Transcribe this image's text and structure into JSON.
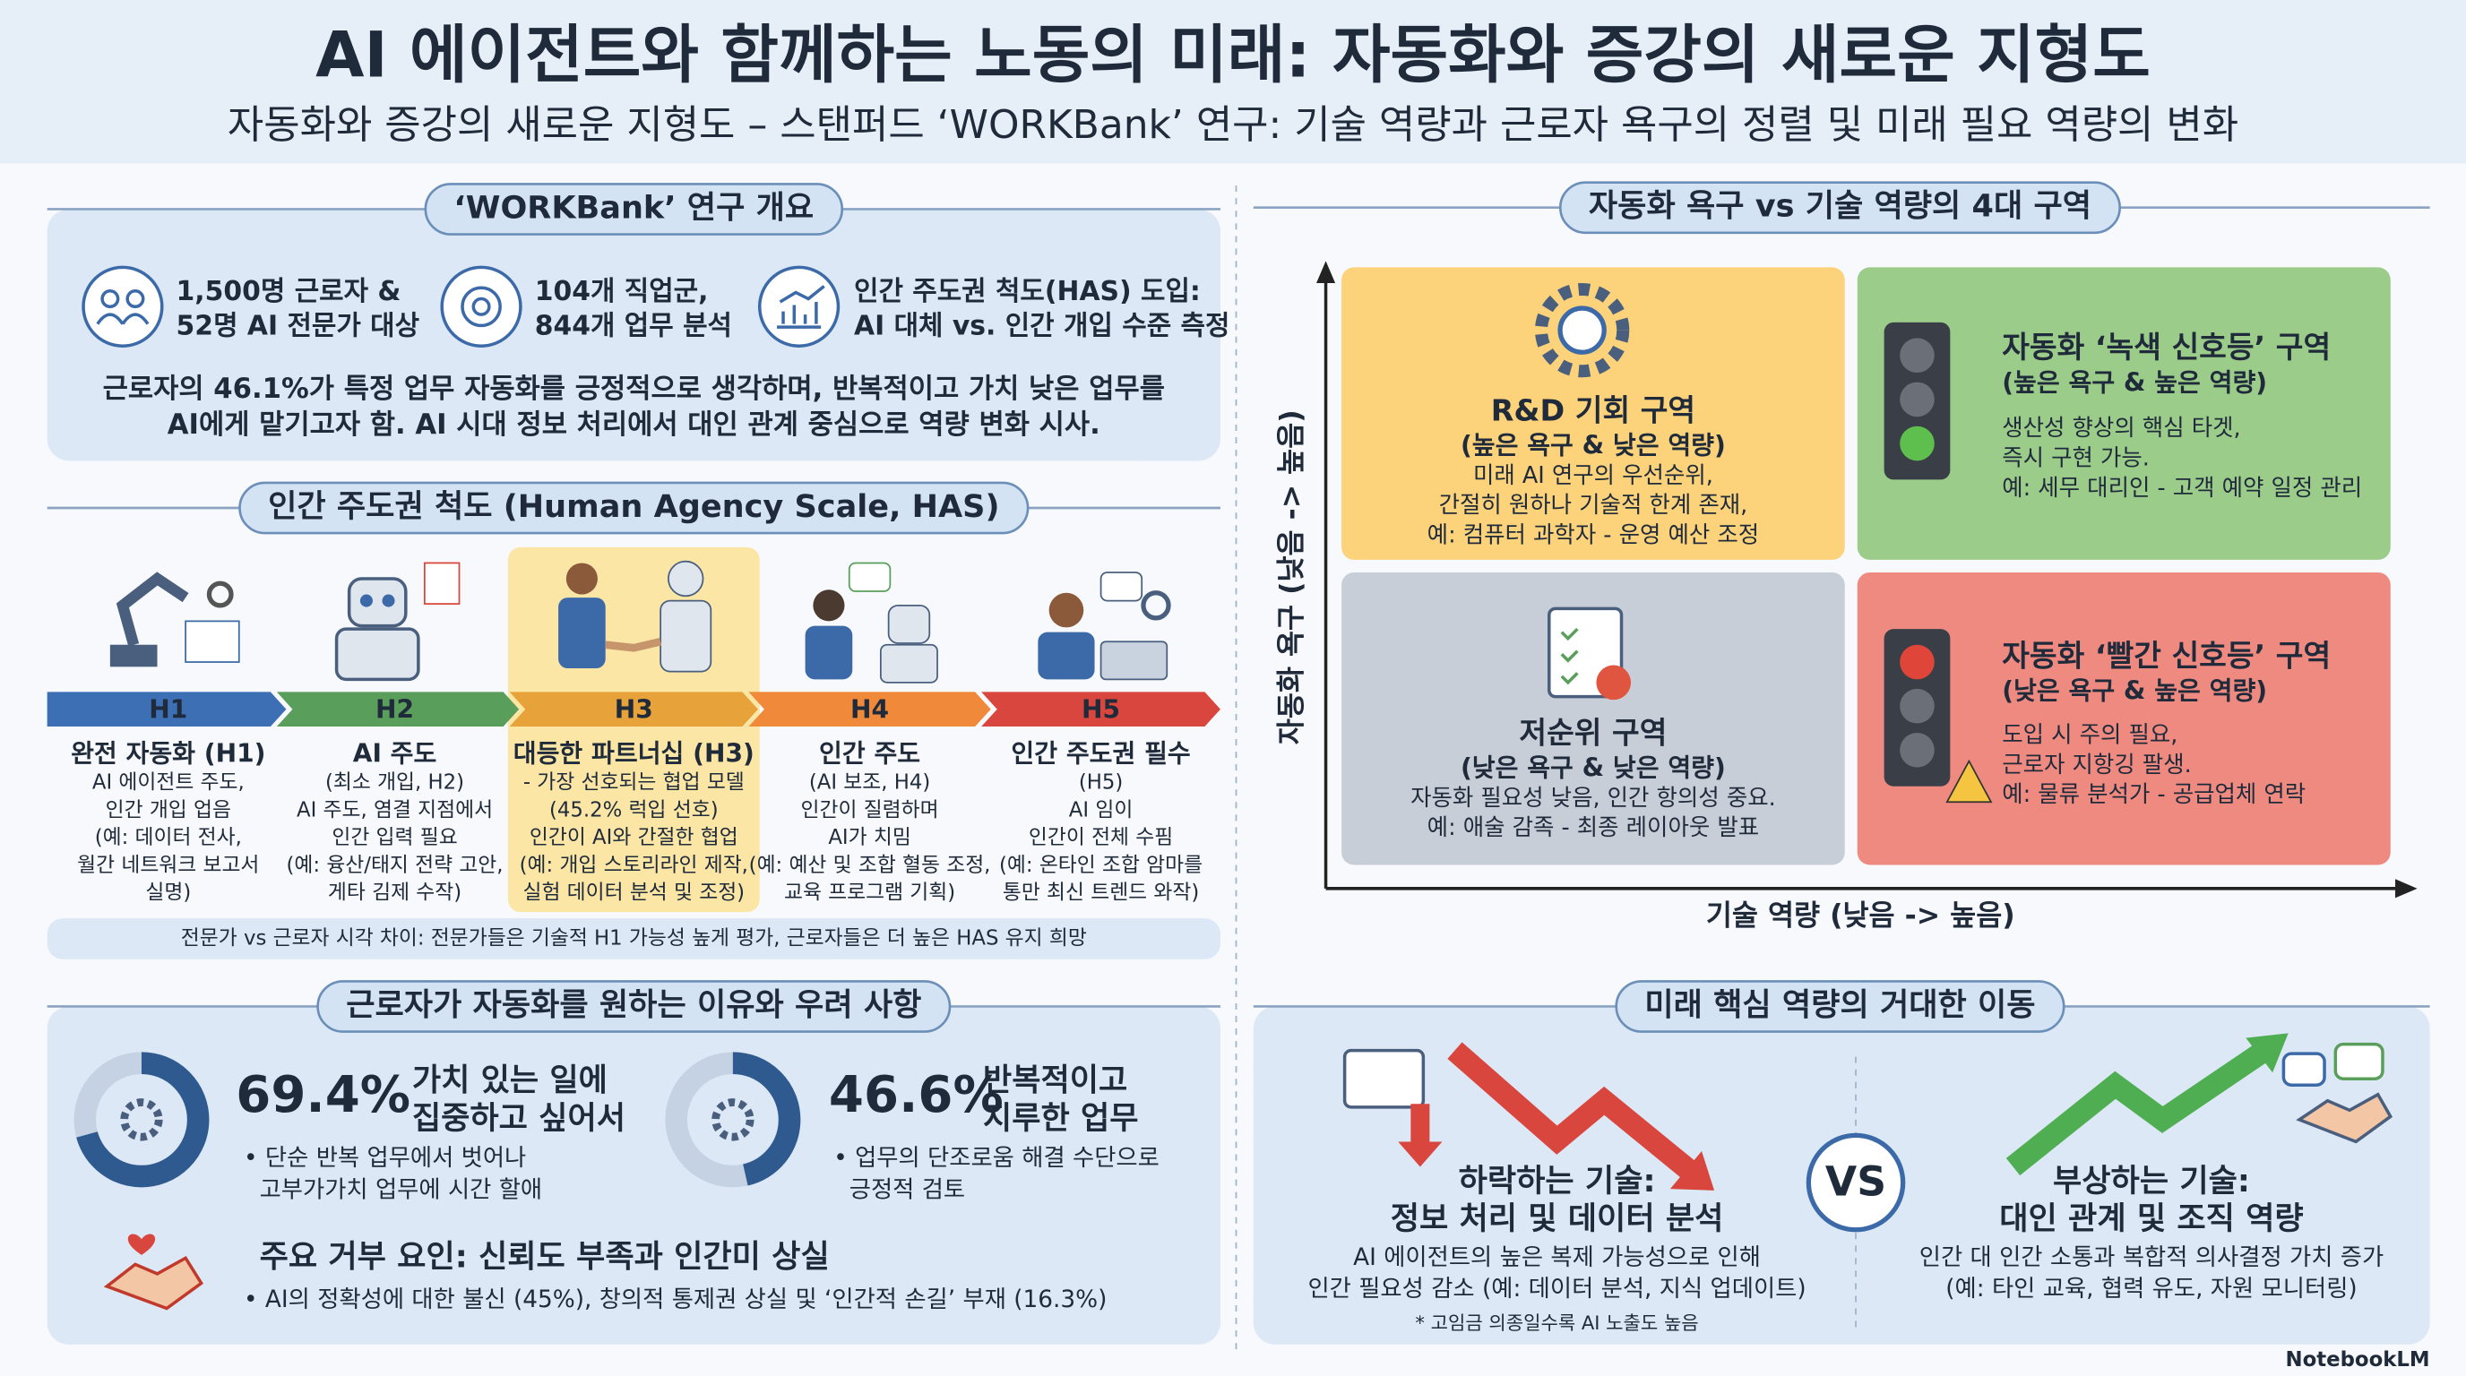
{
  "header": {
    "title": "AI 에이전트와 함께하는 노동의 미래: 자동화와 증강의 새로운 지형도",
    "subtitle": "자동화와 증강의 새로운 지형도 – 스탠퍼드 ‘WORKBank’ 연구: 기술 역량과 근로자 욕구의 정렬 및 미래 필요 역량의 변화"
  },
  "overview": {
    "heading": "‘WORKBank’ 연구 개요",
    "items": [
      [
        "1,500명 근로자 &",
        "52명 AI 전문가 대상"
      ],
      [
        "104개 직업군,",
        "844개 업무 분석"
      ],
      [
        "인간 주도권 척도(HAS) 도입:",
        "AI 대체 vs. 인간 개입 수준 측정"
      ]
    ],
    "summary": [
      "근로자의 46.1%가 특정 업무 자동화를 긍정적으로 생각하며, 반복적이고 가치 낮은 업무를",
      "AI에게 맡기고자 함. AI 시대 정보 처리에서 대인 관계 중심으로 역량 변화 시사."
    ]
  },
  "has": {
    "heading": "인간 주도권 척도 (Human Agency Scale, HAS)",
    "levels": [
      {
        "code": "H1",
        "title": "완전 자동화 (H1)",
        "lines": [
          "AI 에이전트 주도,",
          "인간 개입 업음",
          "(예: 데이터 전사,",
          "월간 네트워크 보고서",
          "실명)"
        ]
      },
      {
        "code": "H2",
        "title": "AI 주도",
        "lines": [
          "(최소 개입, H2)",
          "AI 주도, 염결 지점에서",
          "인간 입력 필요",
          "(예: 융산/태지 전략 고안,",
          "게타 김제 수작)"
        ]
      },
      {
        "code": "H3",
        "title": "대등한 파트너십 (H3)",
        "lines": [
          "- 가장 선호되는 협업 모델",
          "(45.2% 럭입 선호)",
          "인간이 AI와 간절한 협업",
          "(예: 개입 스토리라인 제작,",
          "실험 데이터 분석 및 조정)"
        ]
      },
      {
        "code": "H4",
        "title": "인간 주도",
        "lines": [
          "(AI 보조, H4)",
          "인간이 질렴하며",
          "AI가 치밈",
          "(예: 예산 및 조합 혈동 조정,",
          "교육 프로그램 기획)"
        ]
      },
      {
        "code": "H5",
        "title": "인간 주도권 필수",
        "lines": [
          "(H5)",
          "AI 임이",
          "인간이 전체 수핌",
          "(예: 온타인 조합 암마를",
          "통만 최신 트렌드 와작)"
        ]
      }
    ],
    "note": "전문가 vs 근로자 시각 차이: 전문가들은 기술적 H1 가능성 높게 평가, 근로자들은 더 높은 HAS 유지 희망"
  },
  "reasons": {
    "heading": "근로자가 자동화를 원하는 이유와 우려 사항",
    "stats": [
      {
        "percent": "69.4%",
        "title": [
          "가치 있는 일에",
          "집중하고 싶어서"
        ],
        "bullets": [
          "• 단순 반복 업무에서 벗어나",
          "고부가가치 업무에 시간 할애"
        ]
      },
      {
        "percent": "46.6%",
        "title": [
          "반복적이고",
          "지루한 업무"
        ],
        "bullets": [
          "• 업무의 단조로움 해결 수단으로",
          "긍정적 검토"
        ]
      }
    ],
    "refusal": {
      "title": "주요 거부 요인: 신뢰도 부족과 인간미 상실",
      "text": "• AI의 정확성에 대한 불신 (45%), 창의적 통제권 상실 및 ‘인간적 손길’ 부재 (16.3%)"
    }
  },
  "quadrant": {
    "heading": "자동화 욕구 vs 기술 역량의 4대 구역",
    "y_axis": "자동화 욕구 (낮음 -> 높음)",
    "x_axis": "기술 역량 (낮음 -> 높음)",
    "zones": [
      {
        "title": "R&D 기회 구역",
        "subtitle": "(높은 욕구 & 낮은 역량)",
        "lines": [
          "미래 AI 연구의 우선순위,",
          "간절히 원하나 기술적 한계 존재,",
          "예: 컴퓨터 과학자 - 운영 예산 조정"
        ]
      },
      {
        "title": "자동화 ‘녹색 신호등’ 구역",
        "subtitle": "(높은 욕구 & 높은 역량)",
        "lines": [
          "생산성 향상의 핵심 타겟,",
          "즉시 구현 가능.",
          "예: 세무 대리인 - 고객 예약 일정 관리"
        ]
      },
      {
        "title": "저순위 구역",
        "subtitle": "(낮은 욕구 & 낮은 역량)",
        "lines": [
          "자동화 필요성 낮음, 인간 항의성 중요.",
          "예: 애술 감족 - 최종 레이아웃 발표"
        ]
      },
      {
        "title": "자동화 ‘빨간 신호등’ 구역",
        "subtitle": "(낮은 욕구 & 높은 역량)",
        "lines": [
          "도입 시 주의 필요,",
          "근로자 지항깅 팔생.",
          "예: 물류 분석가 - 공급업체 연락"
        ]
      }
    ]
  },
  "future": {
    "heading": "미래 핵심 역량의 거대한 이동",
    "declining": {
      "title": [
        "하락하는 기술:",
        "정보 처리 및 데이터 분석"
      ],
      "lines": [
        "AI 에이전트의 높은 복제 가능성으로 인해",
        "인간 필요성 감소 (예: 데이터 분석, 지식 업데이트)"
      ],
      "footnote": "* 고임금 의종일수록 AI 노출도 높음"
    },
    "vs": "VS",
    "rising": {
      "title": [
        "부상하는 기술:",
        "대인 관계 및 조직 역량"
      ],
      "lines": [
        "인간 대 인간 소통과 복합적 의사결정 가치 증가",
        "(예: 타인 교육, 협력 유도, 자원 모니터링)"
      ]
    }
  },
  "footer": "NotebookLM"
}
